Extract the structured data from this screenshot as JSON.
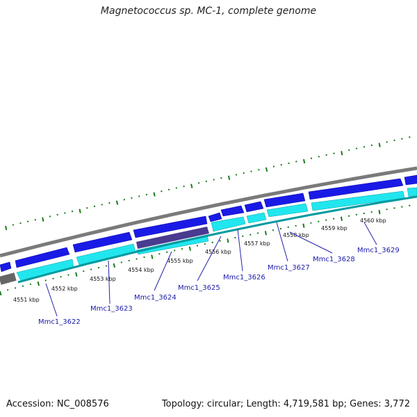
{
  "title": "Magnetococcus sp. MC-1, complete genome",
  "footer": {
    "accession": "Accession: NC_008576",
    "stats": "Topology: circular; Length: 4,719,581 bp; Genes: 3,772"
  },
  "colors": {
    "forward_cds": "#1a1ae6",
    "reverse_cds": "#22e6ee",
    "backbone": "#888888",
    "tick": "#1a7a1a",
    "label_line": "#2222aa",
    "highlight": "#4a3a90"
  },
  "ticks": [
    "4551 kbp",
    "4552 kbp",
    "4553 kbp",
    "4554 kbp",
    "4555 kbp",
    "4556 kbp",
    "4557 kbp",
    "4558 kbp",
    "4559 kbp",
    "4560 kbp"
  ],
  "genes": [
    "Mmc1_3622",
    "Mmc1_3623",
    "Mmc1_3624",
    "Mmc1_3625",
    "Mmc1_3626",
    "Mmc1_3627",
    "Mmc1_3628",
    "Mmc1_3629"
  ]
}
